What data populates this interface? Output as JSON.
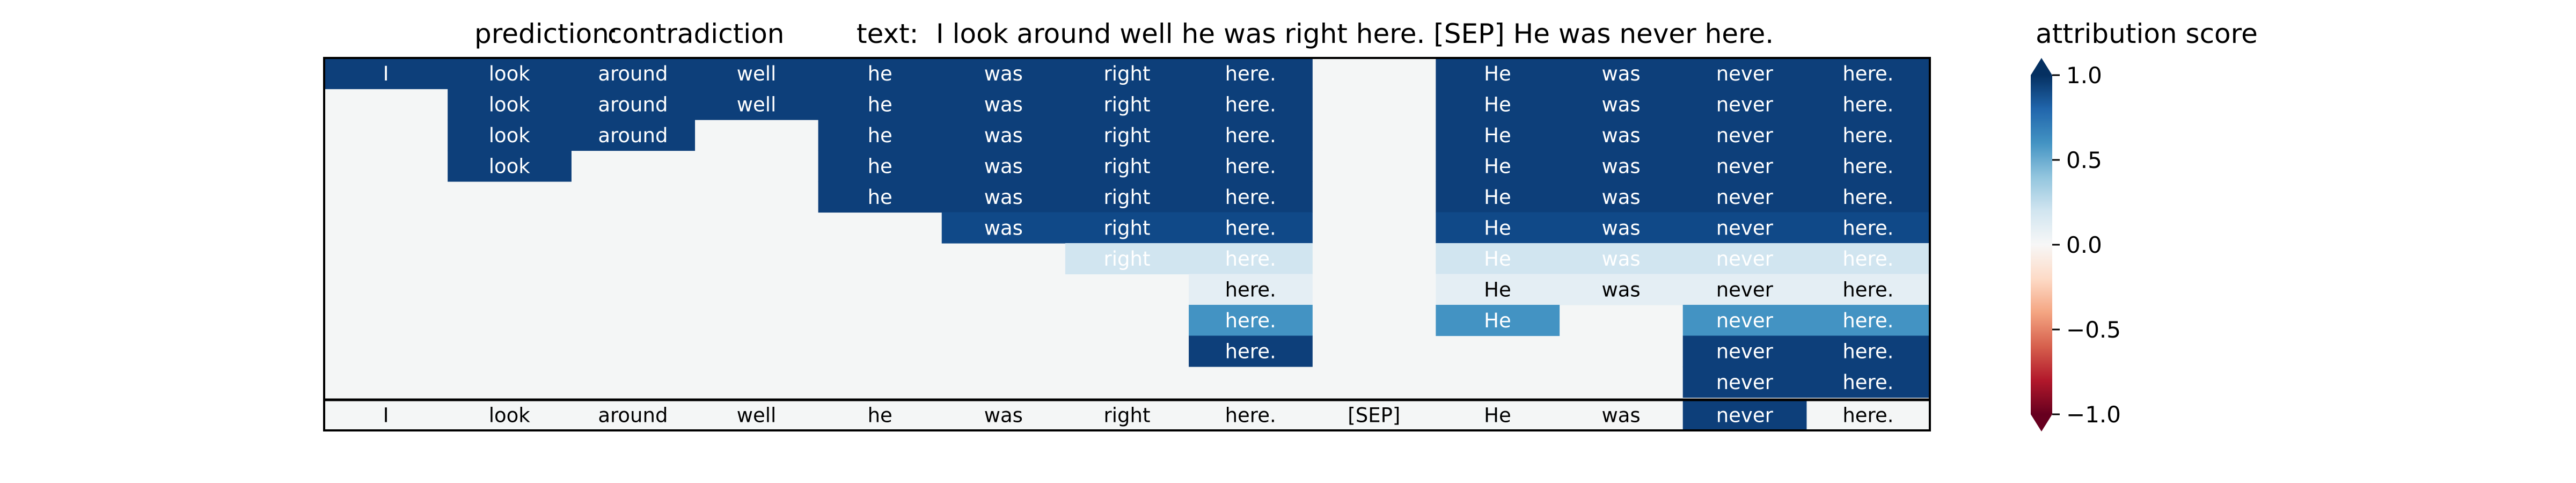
{
  "header": {
    "prediction_label": "prediction:",
    "prediction_value": "contradiction",
    "text_label": "text:",
    "text_value": "I look around well he was right here. [SEP] He was never here.",
    "colorbar_title": "attribution score"
  },
  "colors": {
    "background_cell": "#f4f6f6",
    "colormap": "RdBu",
    "strong_blue": "#0d3f7a"
  },
  "chart_data": {
    "type": "heatmap",
    "tokens": [
      "I",
      "look",
      "around",
      "well",
      "he",
      "was",
      "right",
      "here.",
      "[SEP]",
      "He",
      "was",
      "never",
      "here."
    ],
    "rows": [
      {
        "cells": [
          1.0,
          1.0,
          1.0,
          1.0,
          1.0,
          1.0,
          1.0,
          1.0,
          null,
          1.0,
          1.0,
          1.0,
          1.0
        ]
      },
      {
        "cells": [
          null,
          1.0,
          1.0,
          1.0,
          1.0,
          1.0,
          1.0,
          1.0,
          null,
          1.0,
          1.0,
          1.0,
          1.0
        ]
      },
      {
        "cells": [
          null,
          1.0,
          1.0,
          null,
          1.0,
          1.0,
          1.0,
          1.0,
          null,
          1.0,
          1.0,
          1.0,
          1.0
        ]
      },
      {
        "cells": [
          null,
          1.0,
          null,
          null,
          1.0,
          1.0,
          1.0,
          1.0,
          null,
          1.0,
          1.0,
          1.0,
          1.0
        ]
      },
      {
        "cells": [
          null,
          null,
          null,
          null,
          1.0,
          1.0,
          1.0,
          1.0,
          null,
          1.0,
          1.0,
          1.0,
          1.0
        ]
      },
      {
        "cells": [
          null,
          null,
          null,
          null,
          null,
          0.9,
          0.9,
          0.9,
          null,
          0.9,
          0.9,
          0.9,
          0.9
        ]
      },
      {
        "cells": [
          null,
          null,
          null,
          null,
          null,
          null,
          0.2,
          0.2,
          null,
          0.2,
          0.2,
          0.2,
          0.2
        ]
      },
      {
        "cells": [
          null,
          null,
          null,
          null,
          null,
          null,
          null,
          0.1,
          null,
          0.1,
          0.1,
          0.1,
          0.1
        ]
      },
      {
        "cells": [
          null,
          null,
          null,
          null,
          null,
          null,
          null,
          0.6,
          null,
          0.6,
          null,
          0.6,
          0.6
        ]
      },
      {
        "cells": [
          null,
          null,
          null,
          null,
          null,
          null,
          null,
          1.0,
          null,
          null,
          null,
          1.0,
          1.0
        ]
      },
      {
        "cells": [
          null,
          null,
          null,
          null,
          null,
          null,
          null,
          null,
          null,
          null,
          null,
          1.0,
          1.0
        ]
      }
    ],
    "token_row": {
      "cells": [
        null,
        null,
        null,
        null,
        null,
        null,
        null,
        null,
        null,
        null,
        null,
        1.0,
        null
      ]
    },
    "colorbar": {
      "vmin": -1.0,
      "vmax": 1.0,
      "ticks": [
        "1.0",
        "0.5",
        "0.0",
        "−0.5",
        "−1.0"
      ],
      "tick_values": [
        1.0,
        0.5,
        0.0,
        -0.5,
        -1.0
      ]
    }
  }
}
